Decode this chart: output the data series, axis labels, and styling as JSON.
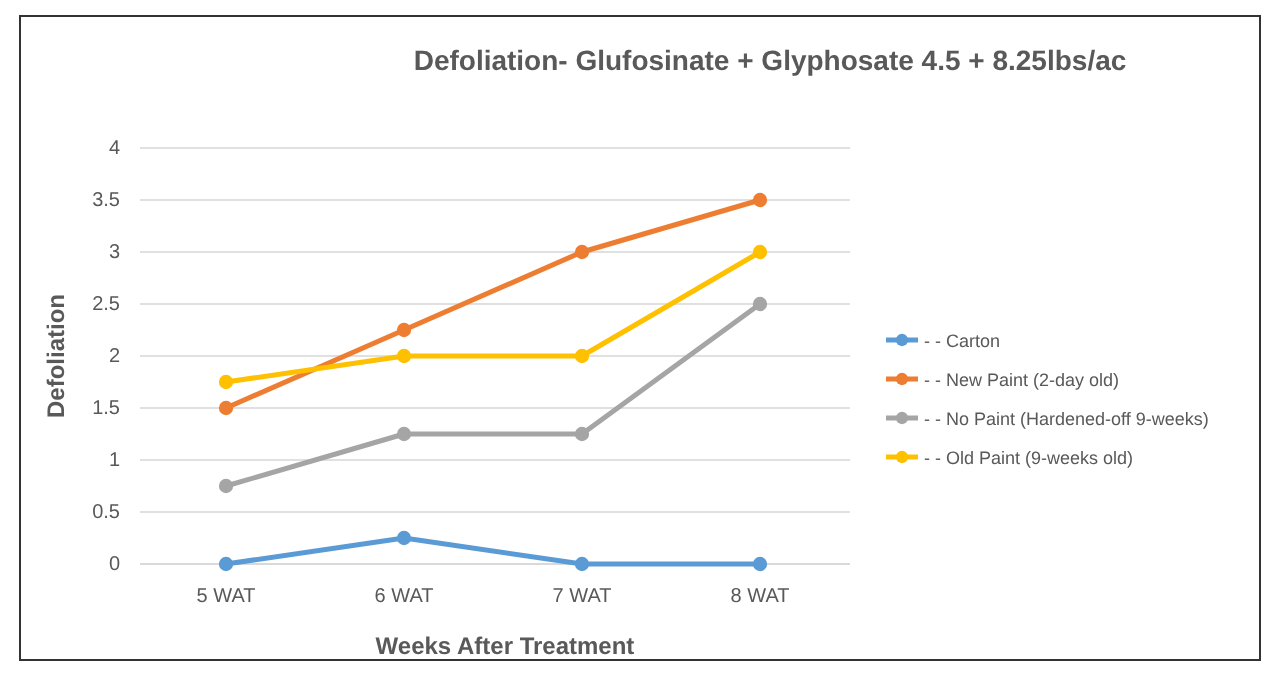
{
  "chart_data": {
    "type": "line",
    "title": "Defoliation- Glufosinate + Glyphosate 4.5 + 8.25lbs/ac",
    "xlabel": "Weeks After Treatment",
    "ylabel": "Defoliation",
    "categories": [
      "5 WAT",
      "6 WAT",
      "7 WAT",
      "8 WAT"
    ],
    "series": [
      {
        "name": "- - Carton",
        "color": "#5b9bd5",
        "values": [
          0,
          0.25,
          0,
          0
        ]
      },
      {
        "name": "- - New Paint (2-day old)",
        "color": "#ed7d31",
        "values": [
          1.5,
          2.25,
          3,
          3.5
        ]
      },
      {
        "name": "- - No Paint (Hardened-off 9-weeks)",
        "color": "#a5a5a5",
        "values": [
          0.75,
          1.25,
          1.25,
          2.5
        ]
      },
      {
        "name": "- - Old Paint (9-weeks old)",
        "color": "#ffc000",
        "values": [
          1.75,
          2,
          2,
          3
        ]
      }
    ],
    "ylim": [
      0,
      4
    ],
    "yticks": [
      0,
      0.5,
      1,
      1.5,
      2,
      2.5,
      3,
      3.5,
      4
    ],
    "grid": "y",
    "legend": "right",
    "marker": "circle",
    "line_style": "solid"
  }
}
